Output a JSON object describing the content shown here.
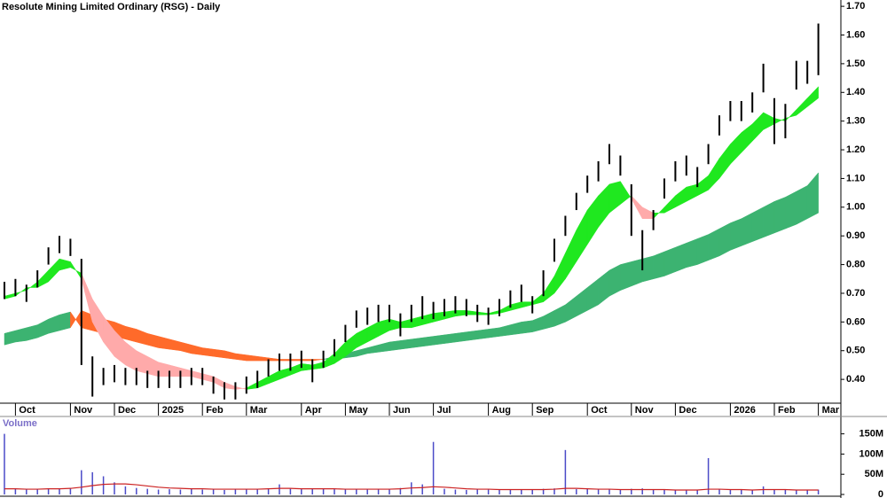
{
  "chart_data": [
    {
      "type": "range",
      "title": "Resolute Mining Limited Ordinary (RSG) - Daily",
      "categories": [
        null,
        "Oct",
        null,
        null,
        null,
        null,
        "Nov",
        null,
        null,
        null,
        "Dec",
        null,
        null,
        null,
        "2025",
        null,
        null,
        null,
        "Feb",
        null,
        null,
        null,
        "Mar",
        null,
        null,
        null,
        null,
        "Apr",
        null,
        null,
        null,
        "May",
        null,
        null,
        null,
        "Jun",
        null,
        null,
        null,
        "Jul",
        null,
        null,
        null,
        null,
        "Aug",
        null,
        null,
        null,
        "Sep",
        null,
        null,
        null,
        null,
        "Oct",
        null,
        null,
        null,
        "Nov",
        null,
        null,
        null,
        "Dec",
        null,
        null,
        null,
        null,
        "2026",
        null,
        null,
        null,
        "Feb",
        null,
        null,
        null,
        "Mar"
      ],
      "low": [
        0.68,
        0.69,
        0.67,
        0.72,
        0.8,
        0.84,
        0.83,
        0.45,
        0.34,
        0.38,
        0.39,
        0.38,
        0.38,
        0.37,
        0.37,
        0.37,
        0.37,
        0.38,
        0.38,
        0.35,
        0.33,
        0.33,
        0.35,
        0.37,
        0.41,
        0.43,
        0.43,
        0.44,
        0.39,
        0.44,
        0.48,
        0.53,
        0.58,
        0.59,
        0.6,
        0.6,
        0.55,
        0.6,
        0.61,
        0.61,
        0.62,
        0.63,
        0.62,
        0.6,
        0.59,
        0.62,
        0.65,
        0.67,
        0.63,
        0.69,
        0.81,
        0.9,
        0.99,
        1.05,
        1.09,
        1.15,
        1.11,
        0.9,
        0.78,
        0.92,
        1.03,
        1.09,
        1.11,
        1.07,
        1.15,
        1.25,
        1.3,
        1.3,
        1.33,
        1.4,
        1.22,
        1.24,
        1.41,
        1.43,
        1.46
      ],
      "high": [
        0.74,
        0.75,
        0.73,
        0.78,
        0.86,
        0.9,
        0.89,
        0.82,
        0.48,
        0.44,
        0.45,
        0.44,
        0.44,
        0.43,
        0.43,
        0.43,
        0.43,
        0.44,
        0.44,
        0.41,
        0.39,
        0.39,
        0.41,
        0.43,
        0.47,
        0.49,
        0.49,
        0.5,
        0.47,
        0.5,
        0.54,
        0.59,
        0.64,
        0.65,
        0.66,
        0.66,
        0.63,
        0.66,
        0.69,
        0.67,
        0.68,
        0.69,
        0.68,
        0.66,
        0.65,
        0.68,
        0.71,
        0.73,
        0.69,
        0.78,
        0.89,
        0.97,
        1.05,
        1.11,
        1.16,
        1.22,
        1.18,
        1.08,
        0.92,
        0.99,
        1.1,
        1.16,
        1.18,
        1.14,
        1.22,
        1.32,
        1.37,
        1.37,
        1.4,
        1.5,
        1.38,
        1.36,
        1.51,
        1.51,
        1.64
      ],
      "color": "#000000",
      "short_ribbon": {
        "bull_color": "#1fe81f",
        "bear_color": "#ffaaaa",
        "fast": [
          0.69,
          0.7,
          0.71,
          0.74,
          0.78,
          0.82,
          0.81,
          0.75,
          0.6,
          0.53,
          0.48,
          0.45,
          0.43,
          0.42,
          0.41,
          0.41,
          0.41,
          0.41,
          0.4,
          0.39,
          0.37,
          0.365,
          0.37,
          0.39,
          0.41,
          0.43,
          0.44,
          0.455,
          0.45,
          0.46,
          0.49,
          0.53,
          0.56,
          0.58,
          0.6,
          0.61,
          0.6,
          0.61,
          0.62,
          0.63,
          0.635,
          0.64,
          0.64,
          0.635,
          0.63,
          0.64,
          0.66,
          0.67,
          0.67,
          0.7,
          0.76,
          0.84,
          0.92,
          0.99,
          1.04,
          1.08,
          1.09,
          1.03,
          0.96,
          0.96,
          1.0,
          1.04,
          1.07,
          1.08,
          1.11,
          1.17,
          1.22,
          1.26,
          1.29,
          1.33,
          1.31,
          1.3,
          1.34,
          1.38,
          1.42
        ],
        "slow": [
          0.68,
          0.69,
          0.72,
          0.72,
          0.74,
          0.78,
          0.79,
          0.77,
          0.68,
          0.62,
          0.57,
          0.53,
          0.5,
          0.48,
          0.46,
          0.45,
          0.44,
          0.43,
          0.42,
          0.41,
          0.39,
          0.375,
          0.365,
          0.37,
          0.385,
          0.4,
          0.415,
          0.43,
          0.435,
          0.44,
          0.455,
          0.48,
          0.51,
          0.53,
          0.55,
          0.57,
          0.58,
          0.58,
          0.59,
          0.6,
          0.61,
          0.62,
          0.625,
          0.625,
          0.625,
          0.63,
          0.64,
          0.65,
          0.66,
          0.67,
          0.7,
          0.75,
          0.81,
          0.87,
          0.93,
          0.98,
          1.01,
          1.04,
          1.0,
          0.98,
          0.98,
          1.0,
          1.02,
          1.04,
          1.06,
          1.1,
          1.15,
          1.19,
          1.23,
          1.27,
          1.29,
          1.31,
          1.32,
          1.35,
          1.38
        ]
      },
      "long_ribbon": {
        "bull_color": "#3cb371",
        "bear_color": "#ff6a2a",
        "fast": [
          0.56,
          0.57,
          0.58,
          0.59,
          0.61,
          0.625,
          0.635,
          0.58,
          0.57,
          0.56,
          0.55,
          0.54,
          0.53,
          0.52,
          0.51,
          0.505,
          0.5,
          0.49,
          0.485,
          0.48,
          0.475,
          0.47,
          0.465,
          0.465,
          0.465,
          0.465,
          0.465,
          0.465,
          0.465,
          0.47,
          0.48,
          0.49,
          0.5,
          0.51,
          0.52,
          0.53,
          0.535,
          0.54,
          0.545,
          0.55,
          0.555,
          0.56,
          0.565,
          0.57,
          0.575,
          0.58,
          0.59,
          0.6,
          0.605,
          0.62,
          0.64,
          0.66,
          0.69,
          0.72,
          0.75,
          0.78,
          0.8,
          0.81,
          0.82,
          0.83,
          0.845,
          0.86,
          0.875,
          0.89,
          0.905,
          0.925,
          0.945,
          0.96,
          0.98,
          1.0,
          1.02,
          1.035,
          1.055,
          1.075,
          1.12
        ],
        "slow": [
          0.52,
          0.53,
          0.535,
          0.545,
          0.56,
          0.57,
          0.58,
          0.64,
          0.625,
          0.61,
          0.6,
          0.585,
          0.575,
          0.56,
          0.55,
          0.54,
          0.53,
          0.52,
          0.51,
          0.505,
          0.5,
          0.49,
          0.485,
          0.48,
          0.475,
          0.47,
          0.47,
          0.47,
          0.47,
          0.47,
          0.47,
          0.475,
          0.48,
          0.49,
          0.495,
          0.5,
          0.505,
          0.51,
          0.515,
          0.52,
          0.525,
          0.53,
          0.535,
          0.54,
          0.545,
          0.55,
          0.555,
          0.56,
          0.565,
          0.575,
          0.585,
          0.6,
          0.62,
          0.64,
          0.66,
          0.69,
          0.71,
          0.725,
          0.74,
          0.75,
          0.76,
          0.775,
          0.79,
          0.8,
          0.815,
          0.83,
          0.85,
          0.865,
          0.88,
          0.895,
          0.91,
          0.925,
          0.94,
          0.96,
          0.98
        ]
      },
      "ylim": [
        0.317,
        1.722
      ],
      "yticks": [
        {
          "value": 0.4,
          "label": "0.40"
        },
        {
          "value": 0.5,
          "label": "0.50"
        },
        {
          "value": 0.6,
          "label": "0.60"
        },
        {
          "value": 0.7,
          "label": "0.70"
        },
        {
          "value": 0.8,
          "label": "0.80"
        },
        {
          "value": 0.9,
          "label": "0.90"
        },
        {
          "value": 1.0,
          "label": "1.00"
        },
        {
          "value": 1.1,
          "label": "1.10"
        },
        {
          "value": 1.2,
          "label": "1.20"
        },
        {
          "value": 1.3,
          "label": "1.30"
        },
        {
          "value": 1.4,
          "label": "1.40"
        },
        {
          "value": 1.5,
          "label": "1.50"
        },
        {
          "value": 1.6,
          "label": "1.60"
        },
        {
          "value": 1.7,
          "label": "1.70"
        }
      ]
    },
    {
      "type": "bar",
      "title": "Volume",
      "color": "#4b4bc8",
      "values": [
        150000000,
        14000000,
        12000000,
        13000000,
        15000000,
        14000000,
        16000000,
        60000000,
        55000000,
        45000000,
        30000000,
        20000000,
        16000000,
        14000000,
        12000000,
        13000000,
        12000000,
        14000000,
        12000000,
        13000000,
        11000000,
        12000000,
        13000000,
        14000000,
        15000000,
        25000000,
        14000000,
        13000000,
        15000000,
        14000000,
        13000000,
        12000000,
        13000000,
        12000000,
        14000000,
        13000000,
        16000000,
        30000000,
        25000000,
        130000000,
        14000000,
        12000000,
        11000000,
        13000000,
        12000000,
        11000000,
        12000000,
        13000000,
        12000000,
        14000000,
        15000000,
        110000000,
        13000000,
        14000000,
        12000000,
        13000000,
        12000000,
        14000000,
        15000000,
        12000000,
        11000000,
        12000000,
        11000000,
        12000000,
        90000000,
        13000000,
        12000000,
        11000000,
        12000000,
        20000000,
        13000000,
        12000000,
        11000000,
        12000000,
        12000000
      ],
      "ma": {
        "color": "#cc2222",
        "values": [
          14000000,
          14000000,
          13000000,
          13000000,
          14000000,
          14000000,
          15000000,
          18000000,
          22000000,
          25000000,
          26000000,
          26000000,
          24000000,
          21000000,
          18000000,
          16000000,
          15000000,
          14000000,
          14000000,
          13000000,
          13000000,
          13000000,
          13000000,
          13000000,
          14000000,
          15000000,
          15000000,
          14000000,
          14000000,
          14000000,
          14000000,
          13000000,
          13000000,
          13000000,
          13000000,
          13000000,
          14000000,
          16000000,
          17000000,
          19000000,
          18000000,
          16000000,
          14000000,
          13000000,
          13000000,
          12000000,
          12000000,
          12000000,
          12000000,
          12000000,
          13000000,
          15000000,
          15000000,
          14000000,
          13000000,
          13000000,
          12000000,
          12000000,
          12000000,
          12000000,
          12000000,
          11000000,
          11000000,
          11000000,
          13000000,
          13000000,
          12000000,
          12000000,
          11000000,
          12000000,
          12000000,
          12000000,
          11000000,
          11000000,
          11000000
        ]
      },
      "ylim": [
        0,
        193000000
      ],
      "yticks": [
        {
          "value": 0,
          "label": "0"
        },
        {
          "value": 50000000,
          "label": "50M"
        },
        {
          "value": 100000000,
          "label": "100M"
        },
        {
          "value": 150000000,
          "label": "150M"
        }
      ]
    }
  ]
}
